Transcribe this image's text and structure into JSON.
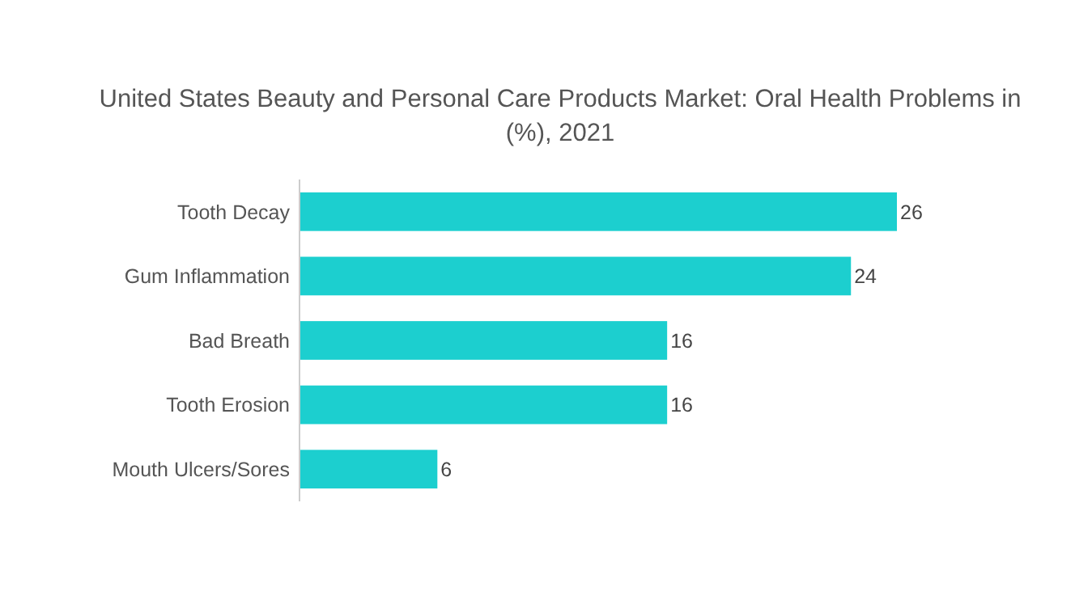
{
  "chart_data": {
    "type": "bar",
    "orientation": "horizontal",
    "title": "United States Beauty and Personal Care Products Market: Oral Health Problems in (%), 2021",
    "categories": [
      "Tooth Decay",
      "Gum Inflammation",
      "Bad Breath",
      "Tooth Erosion",
      "Mouth Ulcers/Sores"
    ],
    "values": [
      26,
      24,
      16,
      16,
      6
    ],
    "color": "#1ccfcf",
    "data_labels": true
  }
}
